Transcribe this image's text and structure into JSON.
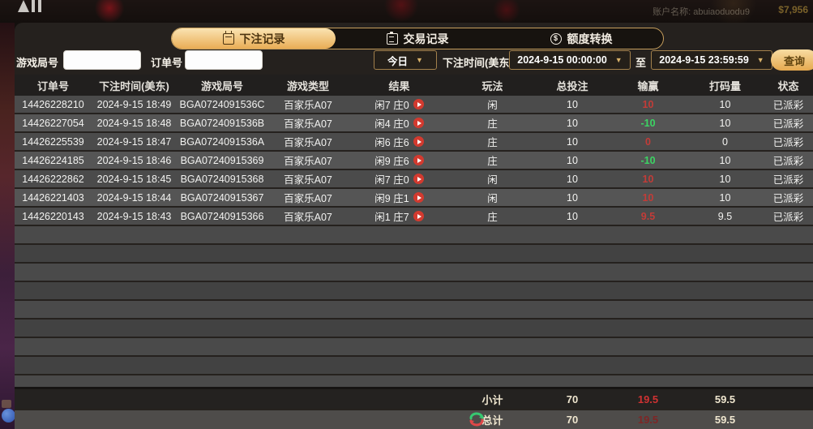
{
  "background": {
    "account_label": "账户名称: abuiaoduodu9",
    "balance": "$7,956",
    "close_glyph": "✕"
  },
  "tabs": [
    {
      "label": "下注记录",
      "icon": "calendar-icon",
      "active": true
    },
    {
      "label": "交易记录",
      "icon": "clipboard-icon",
      "active": false
    },
    {
      "label": "额度转换",
      "icon": "coin-transfer-icon",
      "active": false
    }
  ],
  "filters": {
    "game_round_label": "游戏局号",
    "game_round_value": "",
    "order_no_label": "订单号",
    "order_no_value": "",
    "range_selected": "今日",
    "bet_time_label": "下注时间(美东)",
    "start_time": "2024-9-15 00:00:00",
    "to_label": "至",
    "end_time": "2024-9-15 23:59:59",
    "query_button": "查询",
    "caret_glyph": "▼"
  },
  "table": {
    "headers": [
      "订单号",
      "下注时间(美东)",
      "游戏局号",
      "游戏类型",
      "结果",
      "玩法",
      "总投注",
      "输赢",
      "打码量",
      "状态"
    ],
    "rows": [
      {
        "order_id": "14426228210",
        "time": "2024-9-15 18:49",
        "round": "BGA0724091536C",
        "game": "百家乐A07",
        "result": "闲7 庄0",
        "play": "闲",
        "bet": "10",
        "winloss": "10",
        "winloss_type": "win",
        "turnover": "10",
        "status": "已派彩"
      },
      {
        "order_id": "14426227054",
        "time": "2024-9-15 18:48",
        "round": "BGA0724091536B",
        "game": "百家乐A07",
        "result": "闲4 庄0",
        "play": "庄",
        "bet": "10",
        "winloss": "-10",
        "winloss_type": "loss",
        "turnover": "10",
        "status": "已派彩"
      },
      {
        "order_id": "14426225539",
        "time": "2024-9-15 18:47",
        "round": "BGA0724091536A",
        "game": "百家乐A07",
        "result": "闲6 庄6",
        "play": "庄",
        "bet": "10",
        "winloss": "0",
        "winloss_type": "win",
        "turnover": "0",
        "status": "已派彩"
      },
      {
        "order_id": "14426224185",
        "time": "2024-9-15 18:46",
        "round": "BGA07240915369",
        "game": "百家乐A07",
        "result": "闲9 庄6",
        "play": "庄",
        "bet": "10",
        "winloss": "-10",
        "winloss_type": "loss",
        "turnover": "10",
        "status": "已派彩"
      },
      {
        "order_id": "14426222862",
        "time": "2024-9-15 18:45",
        "round": "BGA07240915368",
        "game": "百家乐A07",
        "result": "闲7 庄0",
        "play": "闲",
        "bet": "10",
        "winloss": "10",
        "winloss_type": "win",
        "turnover": "10",
        "status": "已派彩"
      },
      {
        "order_id": "14426221403",
        "time": "2024-9-15 18:44",
        "round": "BGA07240915367",
        "game": "百家乐A07",
        "result": "闲9 庄1",
        "play": "闲",
        "bet": "10",
        "winloss": "10",
        "winloss_type": "win",
        "turnover": "10",
        "status": "已派彩"
      },
      {
        "order_id": "14426220143",
        "time": "2024-9-15 18:43",
        "round": "BGA07240915366",
        "game": "百家乐A07",
        "result": "闲1 庄7",
        "play": "庄",
        "bet": "10",
        "winloss": "9.5",
        "winloss_type": "win",
        "turnover": "9.5",
        "status": "已派彩"
      }
    ],
    "subtotal": {
      "label": "小计",
      "bet": "70",
      "winloss": "19.5",
      "turnover": "59.5"
    },
    "total": {
      "label": "总计",
      "bet": "70",
      "winloss": "19.5",
      "turnover": "59.5"
    }
  }
}
